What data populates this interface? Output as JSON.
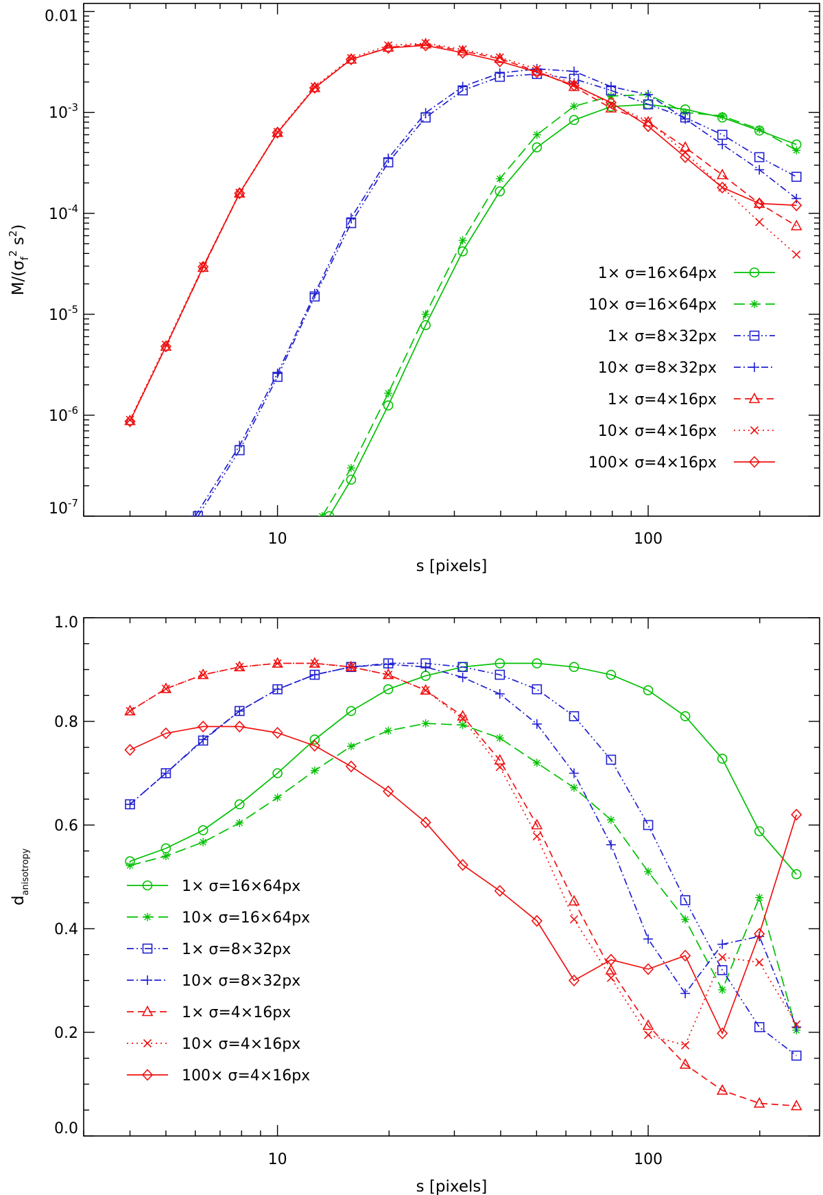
{
  "chart_data": [
    {
      "type": "line",
      "title": "",
      "xlabel": "s [pixels]",
      "ylabel_parts": {
        "prefix": "M/(σ",
        "sub": "f",
        "sup1": "2",
        "mid": " s",
        "sup2": "2",
        "suffix": ")"
      },
      "xscale": "log",
      "yscale": "log",
      "xlim": [
        3.0,
        290
      ],
      "ylim": [
        1e-07,
        0.012
      ],
      "xticks": [
        {
          "value": 10,
          "label": "10"
        },
        {
          "value": 100,
          "label": "100"
        }
      ],
      "yticks": [
        {
          "value": 1e-07,
          "base": "10",
          "exp": "-7"
        },
        {
          "value": 1e-06,
          "base": "10",
          "exp": "-6"
        },
        {
          "value": 1e-05,
          "base": "10",
          "exp": "-5"
        },
        {
          "value": 0.0001,
          "base": "10",
          "exp": "-4"
        },
        {
          "value": 0.001,
          "base": "10",
          "exp": "-3"
        },
        {
          "value": 0.01,
          "label": "0.01"
        }
      ],
      "legend_position": "bottom-right",
      "legend_align": "right",
      "series": [
        {
          "name": "1× σ=16×64px",
          "color": "#00c000",
          "dash": "solid",
          "marker": "circle",
          "x": [
            13.8,
            15.8,
            19.9,
            25.1,
            31.6,
            39.8,
            50.1,
            63.1,
            79.4,
            100,
            125.9,
            158.5,
            199.5,
            251.2
          ],
          "y": [
            1e-07,
            2.3e-07,
            1.25e-06,
            7.8e-06,
            4.2e-05,
            0.000165,
            0.00045,
            0.00084,
            0.00114,
            0.0012,
            0.00107,
            0.00089,
            0.00066,
            0.00048
          ]
        },
        {
          "name": "10× σ=16×64px",
          "color": "#00c000",
          "dash": "long",
          "marker": "asterisk",
          "x": [
            13.2,
            15.8,
            19.9,
            25.1,
            31.6,
            39.8,
            50.1,
            63.1,
            79.4,
            100,
            125.9,
            158.5,
            199.5,
            251.2
          ],
          "y": [
            1e-07,
            3e-07,
            1.65e-06,
            1e-05,
            5.4e-05,
            0.00022,
            0.0006,
            0.00115,
            0.00145,
            0.0015,
            0.001,
            0.00092,
            0.00068,
            0.00042
          ]
        },
        {
          "name": "1× σ=8×32px",
          "color": "#2020d0",
          "dash": "dashdotdot",
          "marker": "square",
          "x": [
            6.1,
            7.9,
            10,
            12.6,
            15.8,
            19.9,
            25.1,
            31.6,
            39.8,
            50.1,
            63.1,
            79.4,
            100,
            125.9,
            158.5,
            199.5,
            251.2
          ],
          "y": [
            1e-07,
            4.5e-07,
            2.4e-06,
            1.5e-05,
            8e-05,
            0.00032,
            0.00089,
            0.00165,
            0.00225,
            0.0024,
            0.00215,
            0.00165,
            0.0012,
            0.00089,
            0.0006,
            0.00036,
            0.00023
          ]
        },
        {
          "name": "10× σ=8×32px",
          "color": "#2020d0",
          "dash": "dashdot",
          "marker": "plus",
          "x": [
            6.0,
            7.9,
            10,
            12.6,
            15.8,
            19.9,
            25.1,
            31.6,
            39.8,
            50.1,
            63.1,
            79.4,
            100,
            125.9,
            158.5,
            199.5,
            251.2
          ],
          "y": [
            1e-07,
            5e-07,
            2.6e-06,
            1.6e-05,
            9e-05,
            0.00035,
            0.00099,
            0.0018,
            0.00245,
            0.0027,
            0.00255,
            0.0018,
            0.0015,
            0.00086,
            0.00048,
            0.00027,
            0.00014
          ]
        },
        {
          "name": "1× σ=4×16px",
          "color": "#f01010",
          "dash": "dash",
          "marker": "triangle",
          "x": [
            4.0,
            5.0,
            6.3,
            7.9,
            10,
            12.6,
            15.8,
            19.9,
            25.1,
            31.6,
            39.8,
            50.1,
            63.1,
            79.4,
            100,
            125.9,
            158.5,
            199.5,
            251.2
          ],
          "y": [
            8.8e-07,
            4.8e-06,
            2.9e-05,
            0.000158,
            0.00063,
            0.00175,
            0.00335,
            0.0044,
            0.00475,
            0.00405,
            0.0034,
            0.00255,
            0.0018,
            0.0011,
            0.0008,
            0.00045,
            0.00024,
            0.000125,
            7.5e-05
          ]
        },
        {
          "name": "10× σ=4×16px",
          "color": "#f01010",
          "dash": "dot",
          "marker": "cross",
          "x": [
            4.0,
            5.0,
            6.3,
            7.9,
            10,
            12.6,
            15.8,
            19.9,
            25.1,
            31.6,
            39.8,
            50.1,
            63.1,
            79.4,
            100,
            125.9,
            158.5,
            199.5,
            251.2
          ],
          "y": [
            9e-07,
            5e-06,
            3e-05,
            0.00016,
            0.00064,
            0.0018,
            0.00345,
            0.0046,
            0.00485,
            0.0042,
            0.0035,
            0.0027,
            0.0019,
            0.0012,
            0.00082,
            0.0004,
            0.00018,
            8.2e-05,
            3.9e-05
          ]
        },
        {
          "name": "100× σ=4×16px",
          "color": "#f01010",
          "dash": "solid",
          "marker": "diamond",
          "x": [
            4.0,
            5.0,
            6.3,
            7.9,
            10,
            12.6,
            15.8,
            19.9,
            25.1,
            31.6,
            39.8,
            50.1,
            63.1,
            79.4,
            100,
            125.9,
            158.5,
            199.5,
            251.2
          ],
          "y": [
            8.7e-07,
            4.8e-06,
            2.95e-05,
            0.000158,
            0.00063,
            0.00175,
            0.00335,
            0.00435,
            0.0046,
            0.0039,
            0.0032,
            0.0025,
            0.00185,
            0.00125,
            0.00073,
            0.00036,
            0.00018,
            0.000125,
            0.00012
          ]
        }
      ]
    },
    {
      "type": "line",
      "title": "",
      "xlabel": "s [pixels]",
      "ylabel_parts": {
        "prefix": "d",
        "sub": "anisotropy"
      },
      "xscale": "log",
      "yscale": "linear",
      "xlim": [
        3.0,
        290
      ],
      "ylim": [
        0.0,
        1.0
      ],
      "xticks": [
        {
          "value": 10,
          "label": "10"
        },
        {
          "value": 100,
          "label": "100"
        }
      ],
      "yticks": [
        {
          "value": 0.0,
          "label": "0.0"
        },
        {
          "value": 0.2,
          "label": "0.2"
        },
        {
          "value": 0.4,
          "label": "0.4"
        },
        {
          "value": 0.6,
          "label": "0.6"
        },
        {
          "value": 0.8,
          "label": "0.8"
        },
        {
          "value": 1.0,
          "label": "1.0"
        }
      ],
      "legend_position": "bottom-left",
      "legend_align": "left",
      "series": [
        {
          "name": "1× σ=16×64px",
          "color": "#00c000",
          "dash": "solid",
          "marker": "circle",
          "x": [
            4.0,
            5.0,
            6.3,
            7.9,
            10,
            12.6,
            15.8,
            19.9,
            25.1,
            31.6,
            39.8,
            50.1,
            63.1,
            79.4,
            100,
            125.9,
            158.5,
            199.5,
            251.2
          ],
          "y": [
            0.53,
            0.555,
            0.59,
            0.64,
            0.7,
            0.765,
            0.82,
            0.862,
            0.888,
            0.905,
            0.912,
            0.912,
            0.905,
            0.89,
            0.86,
            0.81,
            0.728,
            0.588,
            0.505
          ]
        },
        {
          "name": "10× σ=16×64px",
          "color": "#00c000",
          "dash": "long",
          "marker": "asterisk",
          "x": [
            4.0,
            5.0,
            6.3,
            7.9,
            10,
            12.6,
            15.8,
            19.9,
            25.1,
            31.6,
            39.8,
            50.1,
            63.1,
            79.4,
            100,
            125.9,
            158.5,
            199.5,
            251.2
          ],
          "y": [
            0.522,
            0.54,
            0.567,
            0.604,
            0.653,
            0.705,
            0.752,
            0.782,
            0.796,
            0.793,
            0.768,
            0.72,
            0.672,
            0.61,
            0.51,
            0.418,
            0.282,
            0.46,
            0.204
          ]
        },
        {
          "name": "1× σ=8×32px",
          "color": "#2020d0",
          "dash": "dashdotdot",
          "marker": "square",
          "x": [
            4.0,
            5.0,
            6.3,
            7.9,
            10,
            12.6,
            15.8,
            19.9,
            25.1,
            31.6,
            39.8,
            50.1,
            63.1,
            79.4,
            100,
            125.9,
            158.5,
            199.5,
            251.2
          ],
          "y": [
            0.64,
            0.7,
            0.763,
            0.82,
            0.862,
            0.89,
            0.905,
            0.912,
            0.912,
            0.905,
            0.89,
            0.862,
            0.81,
            0.726,
            0.6,
            0.455,
            0.32,
            0.21,
            0.155
          ]
        },
        {
          "name": "10× σ=8×32px",
          "color": "#2020d0",
          "dash": "dashdot",
          "marker": "plus",
          "x": [
            4.0,
            5.0,
            6.3,
            7.9,
            10,
            12.6,
            15.8,
            19.9,
            25.1,
            31.6,
            39.8,
            50.1,
            63.1,
            79.4,
            100,
            125.9,
            158.5,
            199.5,
            251.2
          ],
          "y": [
            0.64,
            0.7,
            0.765,
            0.82,
            0.862,
            0.89,
            0.905,
            0.91,
            0.905,
            0.885,
            0.853,
            0.795,
            0.7,
            0.562,
            0.38,
            0.275,
            0.37,
            0.385,
            0.21
          ]
        },
        {
          "name": "1× σ=4×16px",
          "color": "#f01010",
          "dash": "dash",
          "marker": "triangle",
          "x": [
            4.0,
            5.0,
            6.3,
            7.9,
            10,
            12.6,
            15.8,
            19.9,
            25.1,
            31.6,
            39.8,
            50.1,
            63.1,
            79.4,
            100,
            125.9,
            158.5,
            199.5,
            251.2
          ],
          "y": [
            0.82,
            0.863,
            0.89,
            0.905,
            0.912,
            0.912,
            0.905,
            0.89,
            0.86,
            0.81,
            0.725,
            0.6,
            0.453,
            0.32,
            0.213,
            0.138,
            0.088,
            0.063,
            0.058
          ]
        },
        {
          "name": "10× σ=4×16px",
          "color": "#f01010",
          "dash": "dot",
          "marker": "cross",
          "x": [
            4.0,
            5.0,
            6.3,
            7.9,
            10,
            12.6,
            15.8,
            19.9,
            25.1,
            31.6,
            39.8,
            50.1,
            63.1,
            79.4,
            100,
            125.9,
            158.5,
            199.5,
            251.2
          ],
          "y": [
            0.82,
            0.863,
            0.89,
            0.905,
            0.912,
            0.912,
            0.905,
            0.89,
            0.86,
            0.805,
            0.712,
            0.578,
            0.418,
            0.305,
            0.195,
            0.175,
            0.345,
            0.335,
            0.215
          ]
        },
        {
          "name": "100× σ=4×16px",
          "color": "#f01010",
          "dash": "solid",
          "marker": "diamond",
          "x": [
            4.0,
            5.0,
            6.3,
            7.9,
            10,
            12.6,
            15.8,
            19.9,
            25.1,
            31.6,
            39.8,
            50.1,
            63.1,
            79.4,
            100,
            125.9,
            158.5,
            199.5,
            251.2
          ],
          "y": [
            0.745,
            0.777,
            0.79,
            0.79,
            0.778,
            0.753,
            0.713,
            0.665,
            0.605,
            0.523,
            0.473,
            0.415,
            0.3,
            0.34,
            0.322,
            0.348,
            0.198,
            0.39,
            0.62
          ]
        }
      ]
    }
  ]
}
